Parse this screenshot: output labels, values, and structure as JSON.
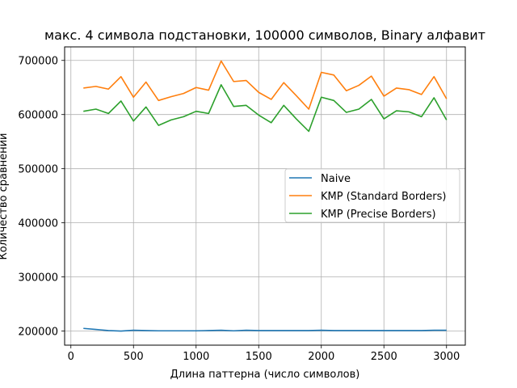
{
  "chart_data": {
    "type": "line",
    "title": "макс. 4 символа подстановки, 100000 символов, Binary алфавит",
    "xlabel": "Длина паттерна (число символов)",
    "ylabel": "Количество сравнений",
    "xlim": [
      -50,
      3150
    ],
    "ylim": [
      174000,
      725000
    ],
    "xticks": [
      0,
      500,
      1000,
      1500,
      2000,
      2500,
      3000
    ],
    "xtick_labels": [
      "0",
      "500",
      "1000",
      "1500",
      "2000",
      "2500",
      "3000"
    ],
    "yticks": [
      200000,
      300000,
      400000,
      500000,
      600000,
      700000
    ],
    "ytick_labels": [
      "200000",
      "300000",
      "400000",
      "500000",
      "600000",
      "700000"
    ],
    "grid": true,
    "legend_position": "center-right",
    "x": [
      100,
      200,
      300,
      400,
      500,
      600,
      700,
      800,
      900,
      1000,
      1100,
      1200,
      1300,
      1400,
      1500,
      1600,
      1700,
      1800,
      1900,
      2000,
      2100,
      2200,
      2300,
      2400,
      2500,
      2600,
      2700,
      2800,
      2900,
      3000
    ],
    "series": [
      {
        "name": "Naive",
        "color": "#1f77b4",
        "values": [
          205000,
          203000,
          201000,
          200000,
          201500,
          201000,
          200500,
          200500,
          200500,
          200500,
          201000,
          201500,
          200500,
          201500,
          201000,
          201000,
          201000,
          201000,
          201000,
          201500,
          201000,
          201000,
          201000,
          201000,
          201000,
          201000,
          201000,
          201000,
          201500,
          201500
        ]
      },
      {
        "name": "KMP (Standard Borders)",
        "color": "#ff7f0e",
        "values": [
          649000,
          652000,
          647000,
          670000,
          632000,
          660000,
          626000,
          633000,
          639000,
          650000,
          645000,
          699000,
          661000,
          663000,
          641000,
          628000,
          659000,
          635000,
          610000,
          678000,
          673000,
          644000,
          654000,
          671000,
          634000,
          649000,
          646000,
          637000,
          670000,
          629000
        ]
      },
      {
        "name": "KMP (Precise Borders)",
        "color": "#2ca02c",
        "values": [
          606000,
          610000,
          602000,
          625000,
          588000,
          614000,
          580000,
          590000,
          596000,
          606000,
          602000,
          655000,
          615000,
          617000,
          599000,
          585000,
          617000,
          592000,
          569000,
          632000,
          626000,
          604000,
          610000,
          628000,
          592000,
          607000,
          605000,
          596000,
          631000,
          590000
        ]
      }
    ]
  }
}
